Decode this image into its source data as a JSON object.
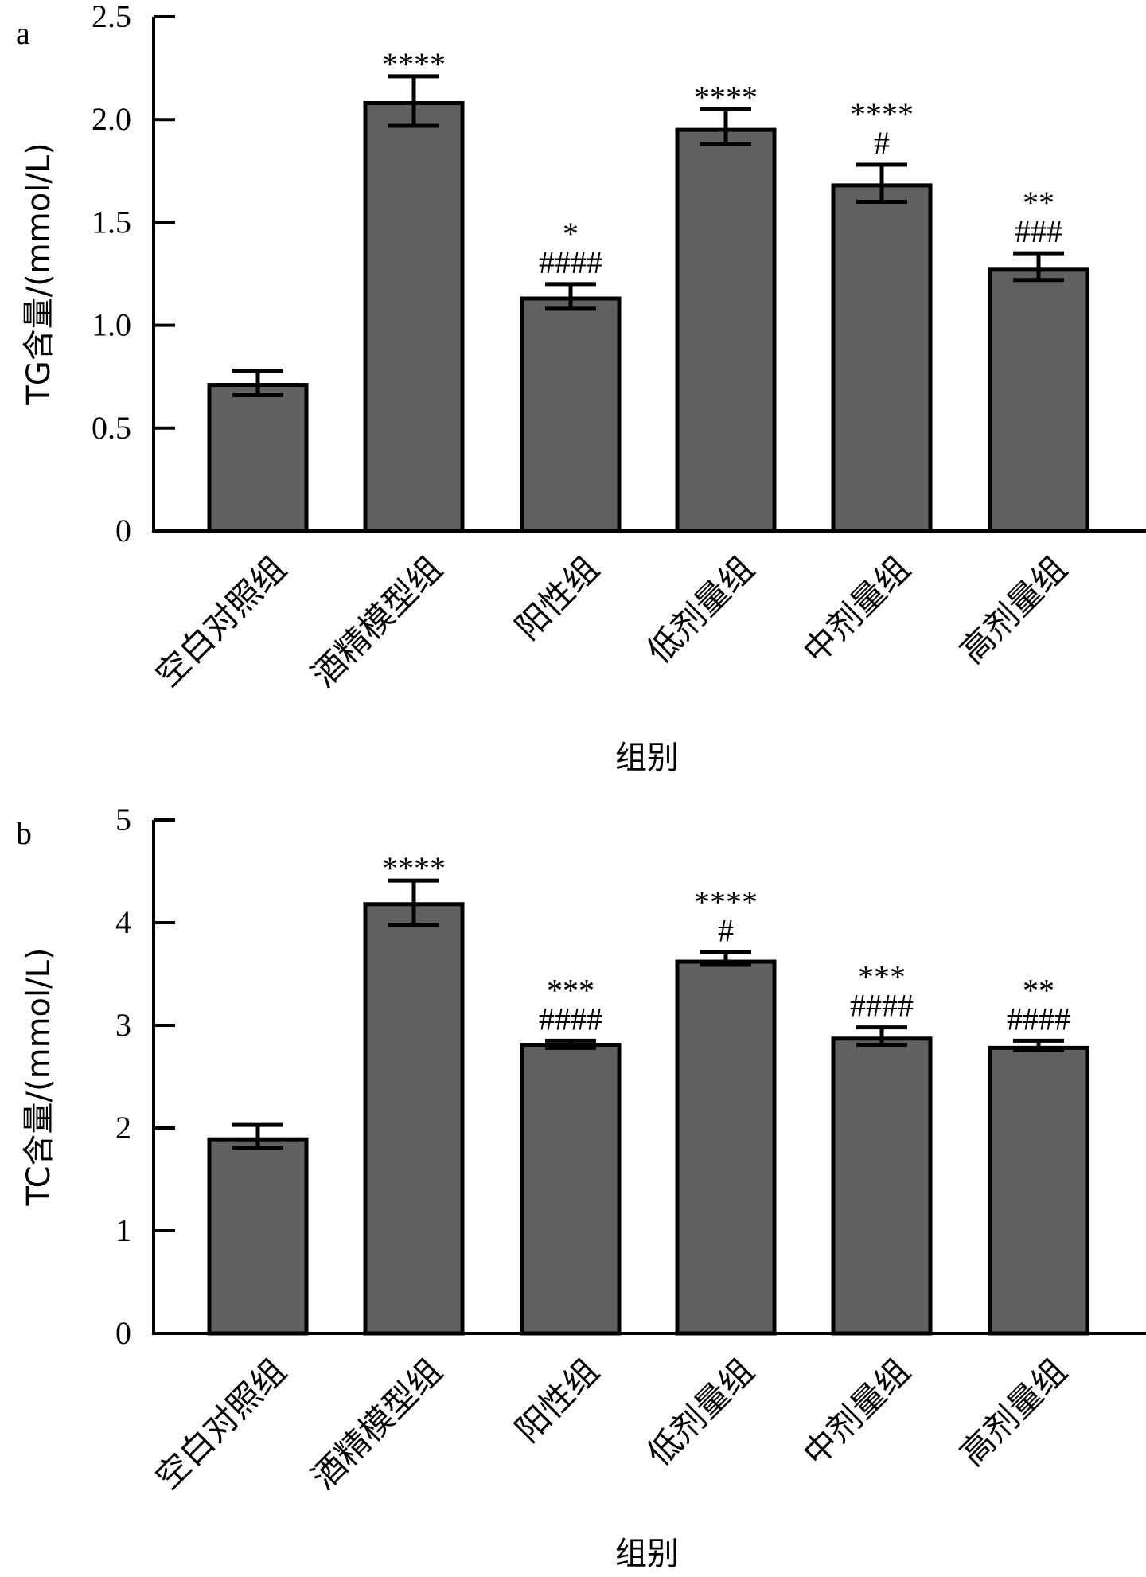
{
  "chart_data": [
    {
      "type": "bar",
      "panel_label": "a",
      "title": "",
      "xlabel": "组别",
      "ylabel": "TG含量/(mmol/L)",
      "ylim": [
        0,
        2.5
      ],
      "yticks": [
        0,
        0.5,
        1.0,
        1.5,
        2.0,
        2.5
      ],
      "ytick_labels": [
        "0",
        "0.5",
        "1.0",
        "1.5",
        "2.0",
        "2.5"
      ],
      "grid": false,
      "bar_color": "#606060",
      "categories": [
        "空白对照组",
        "酒精模型组",
        "阳性组",
        "低剂量组",
        "中剂量组",
        "高剂量组"
      ],
      "values": [
        0.71,
        2.08,
        1.13,
        1.95,
        1.68,
        1.27
      ],
      "error_upper": [
        0.78,
        2.21,
        1.2,
        2.05,
        1.78,
        1.35
      ],
      "error_lower": [
        0.66,
        1.97,
        1.08,
        1.88,
        1.6,
        1.22
      ],
      "annotations": [
        {
          "stars": "",
          "hashes": ""
        },
        {
          "stars": "****",
          "hashes": ""
        },
        {
          "stars": "*",
          "hashes": "####"
        },
        {
          "stars": "****",
          "hashes": ""
        },
        {
          "stars": "****",
          "hashes": "#"
        },
        {
          "stars": "**",
          "hashes": "###"
        }
      ]
    },
    {
      "type": "bar",
      "panel_label": "b",
      "title": "",
      "xlabel": "组别",
      "ylabel": "TC含量/(mmol/L)",
      "ylim": [
        0,
        5
      ],
      "yticks": [
        0,
        1,
        2,
        3,
        4,
        5
      ],
      "ytick_labels": [
        "0",
        "1",
        "2",
        "3",
        "4",
        "5"
      ],
      "grid": false,
      "bar_color": "#606060",
      "categories": [
        "空白对照组",
        "酒精模型组",
        "阳性组",
        "低剂量组",
        "中剂量组",
        "高剂量组"
      ],
      "values": [
        1.89,
        4.18,
        2.81,
        3.62,
        2.87,
        2.78
      ],
      "error_upper": [
        2.03,
        4.41,
        2.85,
        3.71,
        2.98,
        2.85
      ],
      "error_lower": [
        1.81,
        3.98,
        2.78,
        3.59,
        2.81,
        2.76
      ],
      "annotations": [
        {
          "stars": "",
          "hashes": ""
        },
        {
          "stars": "****",
          "hashes": ""
        },
        {
          "stars": "***",
          "hashes": "####"
        },
        {
          "stars": "****",
          "hashes": "#"
        },
        {
          "stars": "***",
          "hashes": "####"
        },
        {
          "stars": "**",
          "hashes": "####"
        }
      ]
    }
  ]
}
